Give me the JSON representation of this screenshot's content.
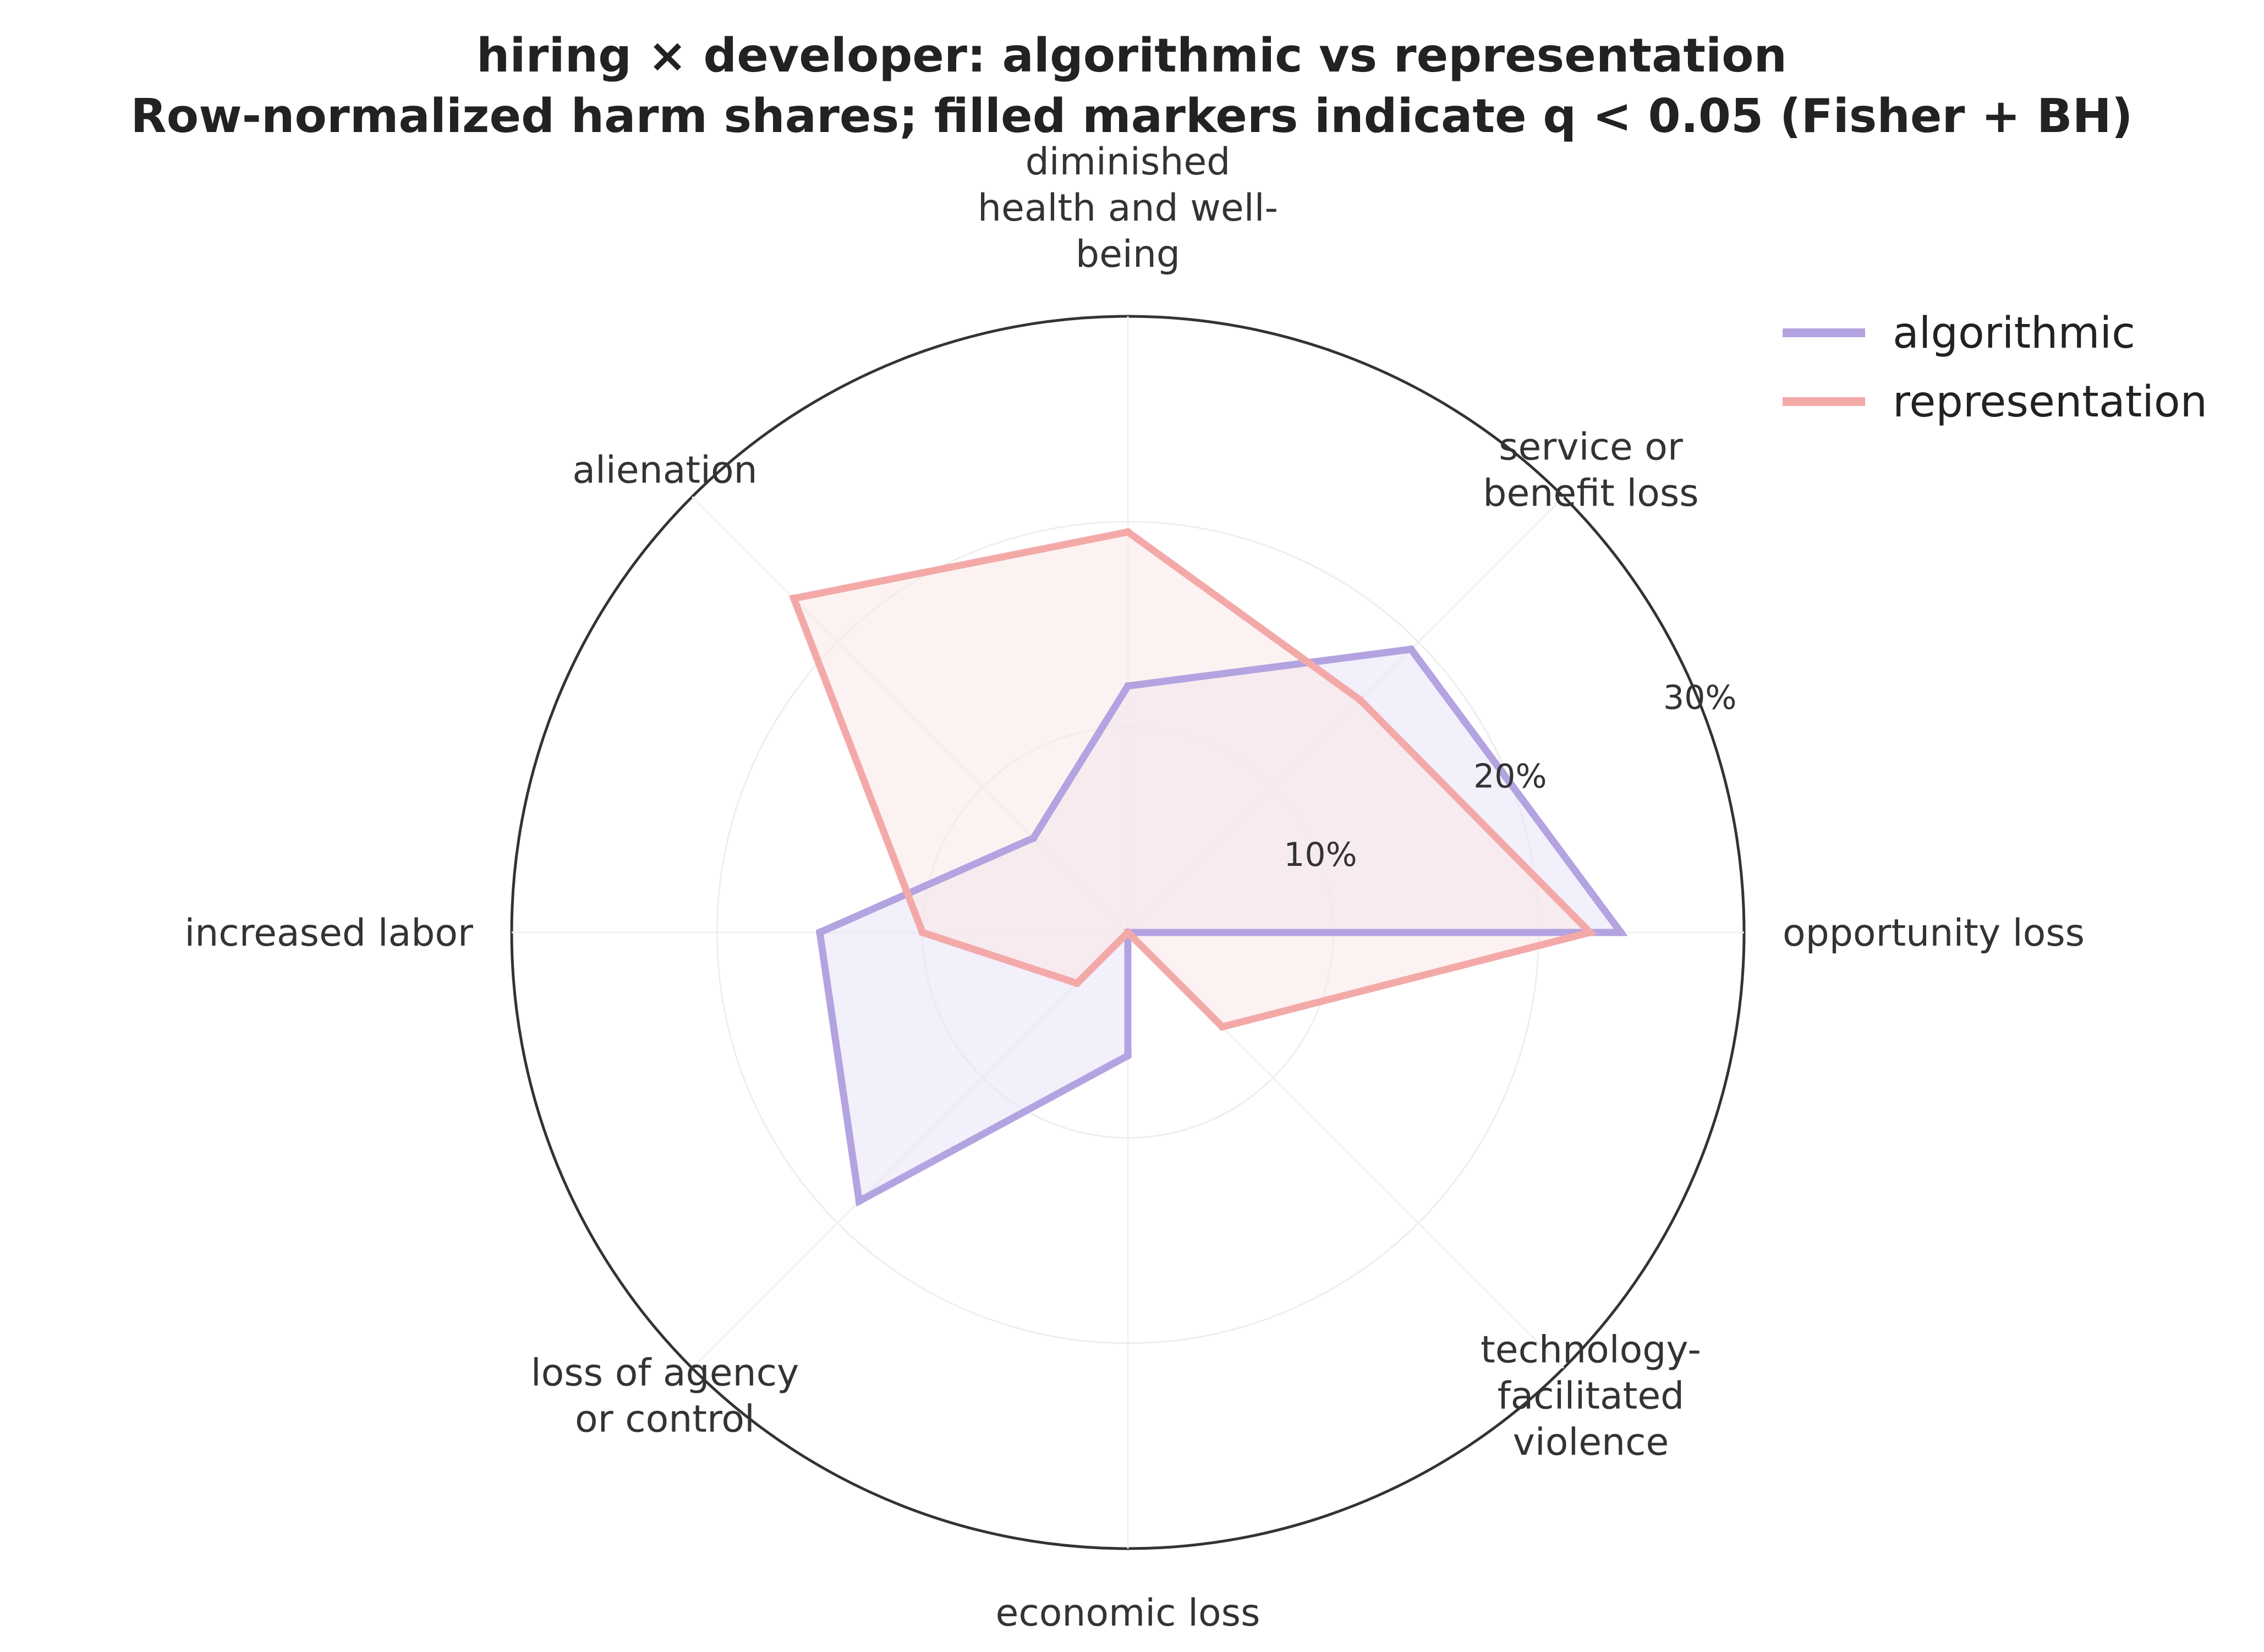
{
  "chart_data": {
    "type": "radar",
    "title": "hiring × developer: algorithmic vs representation",
    "subtitle": "Row-normalized harm shares; filled markers indicate q < 0.05 (Fisher + BH)",
    "categories": [
      [
        "opportunity loss"
      ],
      [
        "service or",
        "benefit loss"
      ],
      [
        "diminished",
        "health and well-",
        "being"
      ],
      [
        "alienation"
      ],
      [
        "increased labor"
      ],
      [
        "loss of agency",
        "or control"
      ],
      [
        "economic loss"
      ],
      [
        "technology-",
        "facilitated",
        "violence"
      ]
    ],
    "series": [
      {
        "name": "algorithmic",
        "color": "#b3a3e0",
        "fill": "#e8e4f7",
        "values": [
          24.0,
          19.5,
          12.0,
          6.5,
          15.0,
          18.5,
          6.0,
          0.0
        ]
      },
      {
        "name": "representation",
        "color": "#f4a9a9",
        "fill": "#fbe7e7",
        "values": [
          22.5,
          16.0,
          19.5,
          23.0,
          10.0,
          3.5,
          0.0,
          6.5
        ]
      }
    ],
    "rticks": [
      "10%",
      "20%",
      "30%"
    ],
    "rtick_values": [
      10,
      20,
      30
    ],
    "rlim": [
      0,
      30
    ],
    "grid": true,
    "legend_position": "top-right"
  }
}
